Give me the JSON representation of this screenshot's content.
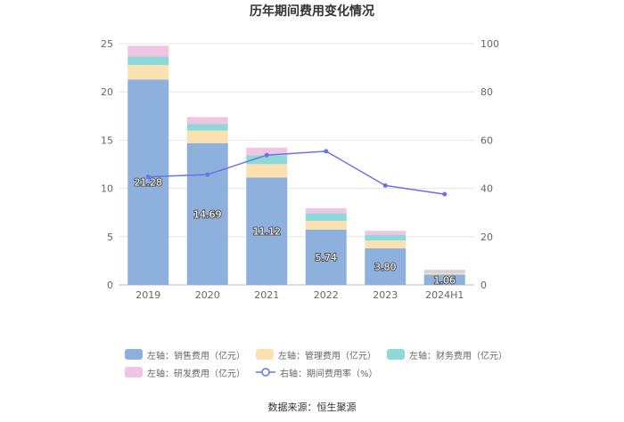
{
  "chart_data": {
    "type": "bar",
    "stacked": true,
    "title": "历年期间费用变化情况",
    "categories": [
      "2019",
      "2020",
      "2021",
      "2022",
      "2023",
      "2024H1"
    ],
    "left_axis": {
      "ylim": [
        0,
        25
      ],
      "ticks": [
        "0",
        "5",
        "10",
        "15",
        "20",
        "25"
      ]
    },
    "right_axis": {
      "ylim": [
        0,
        100
      ],
      "ticks": [
        "0",
        "20",
        "40",
        "60",
        "80",
        "100"
      ]
    },
    "series": [
      {
        "name": "左轴：销售费用（亿元）",
        "color": "#8eb0dc",
        "values": [
          21.28,
          14.69,
          11.12,
          5.74,
          3.8,
          1.06
        ],
        "labels": [
          "21.28",
          "14.69",
          "11.12",
          "5.74",
          "3.80",
          "1.06"
        ]
      },
      {
        "name": "左轴：管理费用（亿元）",
        "color": "#fbe1b0",
        "values": [
          1.5,
          1.3,
          1.4,
          0.9,
          0.8,
          0.2
        ]
      },
      {
        "name": "左轴：财务费用（亿元）",
        "color": "#8fd8d8",
        "values": [
          0.9,
          0.7,
          0.9,
          0.8,
          0.6,
          0.1
        ]
      },
      {
        "name": "左轴：研发费用（亿元）",
        "color": "#efc5e3",
        "values": [
          1.1,
          0.7,
          0.8,
          0.5,
          0.4,
          0.2
        ]
      }
    ],
    "line_series": {
      "name": "右轴：期间费用率（%）",
      "color": "#6b72e6",
      "values": [
        44.8,
        45.7,
        53.8,
        55.4,
        41.2,
        37.6
      ]
    }
  },
  "source": "数据来源：恒生聚源"
}
